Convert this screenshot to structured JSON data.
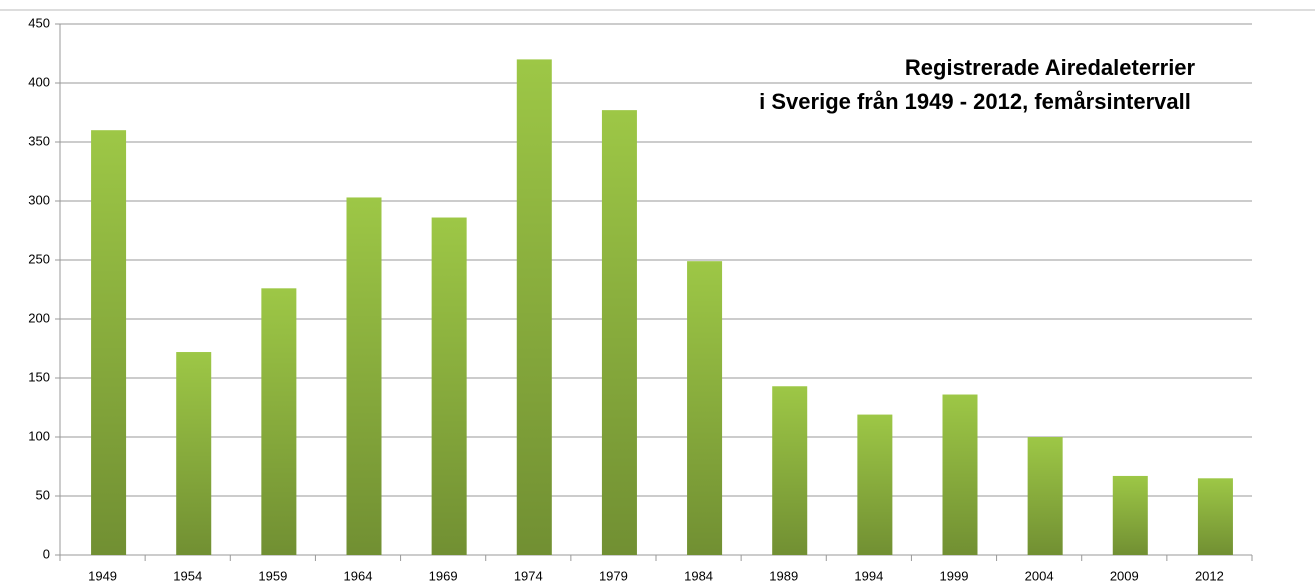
{
  "chart_data": {
    "type": "bar",
    "title": "Registrerade Airedaleterrier",
    "subtitle": "i Sverige från 1949 - 2012, femårsintervall",
    "categories": [
      "1949",
      "1954",
      "1959",
      "1964",
      "1969",
      "1974",
      "1979",
      "1984",
      "1989",
      "1994",
      "1999",
      "2004",
      "2009",
      "2012"
    ],
    "values": [
      360,
      172,
      226,
      303,
      286,
      420,
      377,
      249,
      143,
      119,
      136,
      100,
      67,
      65
    ],
    "color": "#9dc746",
    "ylim": [
      0,
      450
    ],
    "yticks": [
      0,
      50,
      100,
      150,
      200,
      250,
      300,
      350,
      400,
      450
    ],
    "grid": true
  }
}
